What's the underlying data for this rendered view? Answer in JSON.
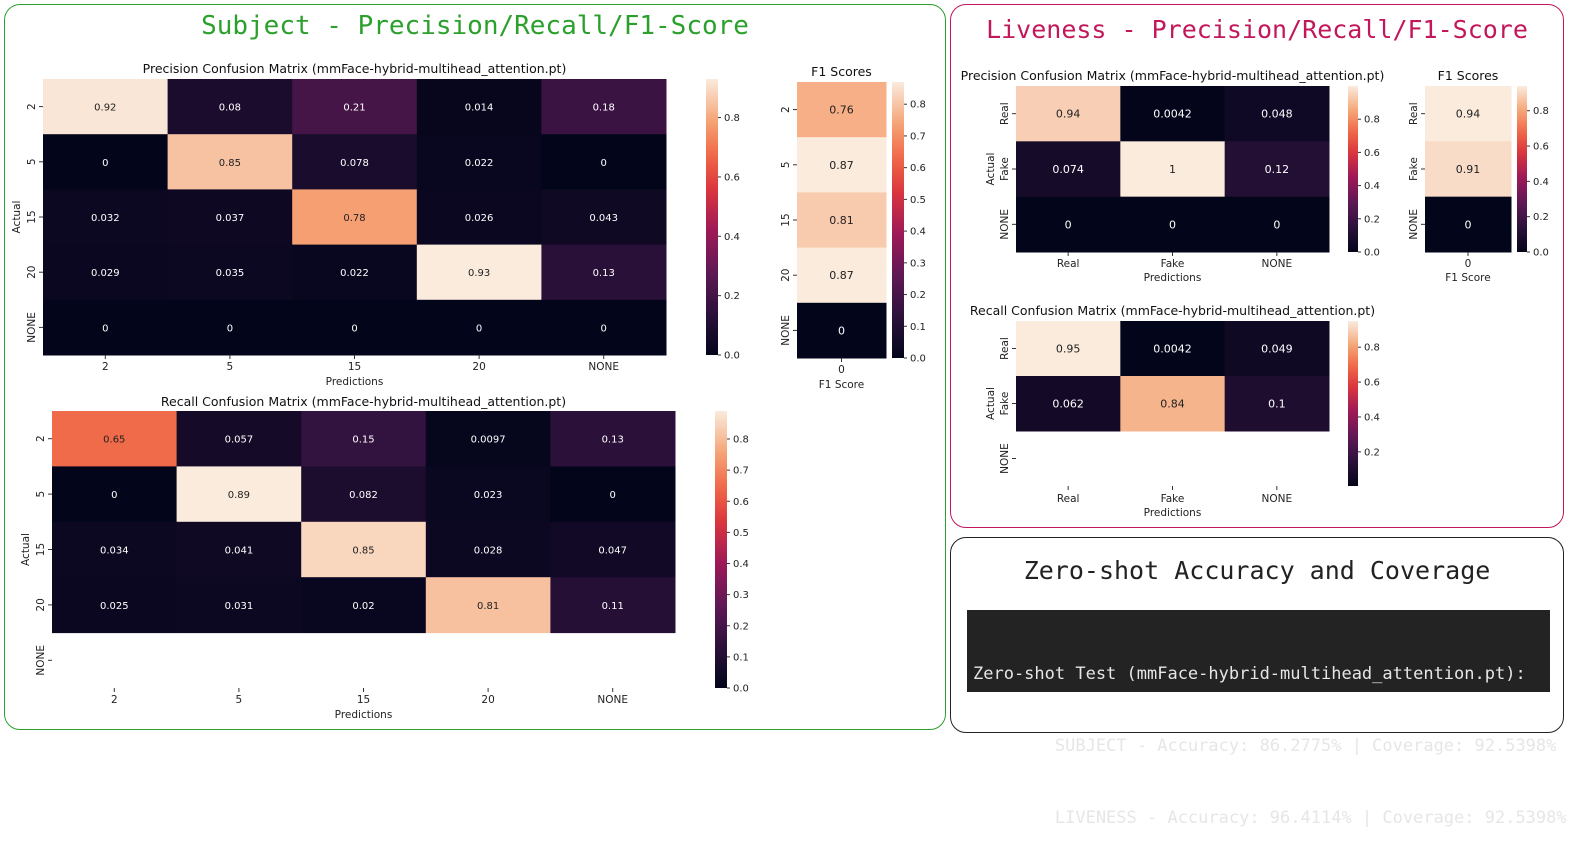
{
  "subject_panel": {
    "title": "Subject - Precision/Recall/F1-Score",
    "accent": "#2ca02c"
  },
  "liveness_panel": {
    "title": "Liveness - Precision/Recall/F1-Score",
    "accent": "#c2185b"
  },
  "zero_shot_panel": {
    "title": "Zero-shot Accuracy and Coverage",
    "lines": [
      "Zero-shot Test (mmFace-hybrid-multihead_attention.pt):",
      "        SUBJECT - Accuracy: 86.2775% | Coverage: 92.5398%",
      "        LIVENESS - Accuracy: 96.4114% | Coverage: 92.5398%"
    ]
  },
  "chart_data": [
    {
      "id": "subj_prec",
      "type": "heatmap",
      "title": "Precision Confusion Matrix (mmFace-hybrid-multihead_attention.pt)",
      "xlabel": "Predictions",
      "ylabel": "Actual",
      "x_categories": [
        "2",
        "5",
        "15",
        "20",
        "NONE"
      ],
      "y_categories": [
        "2",
        "5",
        "15",
        "20",
        "NONE"
      ],
      "values": [
        [
          0.92,
          0.08,
          0.21,
          0.014,
          0.18
        ],
        [
          0,
          0.85,
          0.078,
          0.022,
          0
        ],
        [
          0.032,
          0.037,
          0.78,
          0.026,
          0.043
        ],
        [
          0.029,
          0.035,
          0.022,
          0.93,
          0.13
        ],
        [
          0,
          0,
          0,
          0,
          0
        ]
      ],
      "labels": [
        [
          "0.92",
          "0.08",
          "0.21",
          "0.014",
          "0.18"
        ],
        [
          "0",
          "0.85",
          "0.078",
          "0.022",
          "0"
        ],
        [
          "0.032",
          "0.037",
          "0.78",
          "0.026",
          "0.043"
        ],
        [
          "0.029",
          "0.035",
          "0.022",
          "0.93",
          "0.13"
        ],
        [
          "0",
          "0",
          "0",
          "0",
          "0"
        ]
      ],
      "colorbar": {
        "range": [
          0,
          0.93
        ],
        "ticks": [
          "0.0",
          "0.2",
          "0.4",
          "0.6",
          "0.8"
        ],
        "tick_values": [
          0,
          0.2,
          0.4,
          0.6,
          0.8
        ]
      }
    },
    {
      "id": "subj_f1",
      "type": "heatmap",
      "title": "F1 Scores",
      "xlabel": "F1 Score",
      "ylabel": "",
      "x_categories": [
        "0"
      ],
      "y_categories": [
        "2",
        "5",
        "15",
        "20",
        "NONE"
      ],
      "values": [
        [
          0.76
        ],
        [
          0.87
        ],
        [
          0.81
        ],
        [
          0.87
        ],
        [
          0
        ]
      ],
      "labels": [
        [
          "0.76"
        ],
        [
          "0.87"
        ],
        [
          "0.81"
        ],
        [
          "0.87"
        ],
        [
          "0"
        ]
      ],
      "colorbar": {
        "range": [
          0,
          0.87
        ],
        "ticks": [
          "0.0",
          "0.1",
          "0.2",
          "0.3",
          "0.4",
          "0.5",
          "0.6",
          "0.7",
          "0.8"
        ],
        "tick_values": [
          0,
          0.1,
          0.2,
          0.3,
          0.4,
          0.5,
          0.6,
          0.7,
          0.8
        ]
      }
    },
    {
      "id": "subj_rec",
      "type": "heatmap",
      "title": "Recall Confusion Matrix (mmFace-hybrid-multihead_attention.pt)",
      "xlabel": "Predictions",
      "ylabel": "Actual",
      "x_categories": [
        "2",
        "5",
        "15",
        "20",
        "NONE"
      ],
      "y_categories": [
        "2",
        "5",
        "15",
        "20",
        "NONE"
      ],
      "values": [
        [
          0.65,
          0.057,
          0.15,
          0.0097,
          0.13
        ],
        [
          0,
          0.89,
          0.082,
          0.023,
          0
        ],
        [
          0.034,
          0.041,
          0.85,
          0.028,
          0.047
        ],
        [
          0.025,
          0.031,
          0.02,
          0.81,
          0.11
        ],
        [
          null,
          null,
          null,
          null,
          null
        ]
      ],
      "labels": [
        [
          "0.65",
          "0.057",
          "0.15",
          "0.0097",
          "0.13"
        ],
        [
          "0",
          "0.89",
          "0.082",
          "0.023",
          "0"
        ],
        [
          "0.034",
          "0.041",
          "0.85",
          "0.028",
          "0.047"
        ],
        [
          "0.025",
          "0.031",
          "0.02",
          "0.81",
          "0.11"
        ],
        [
          "",
          "",
          "",
          "",
          ""
        ]
      ],
      "colorbar": {
        "range": [
          0,
          0.89
        ],
        "ticks": [
          "0.0",
          "0.1",
          "0.2",
          "0.3",
          "0.4",
          "0.5",
          "0.6",
          "0.7",
          "0.8"
        ],
        "tick_values": [
          0,
          0.1,
          0.2,
          0.3,
          0.4,
          0.5,
          0.6,
          0.7,
          0.8
        ]
      }
    },
    {
      "id": "live_prec",
      "type": "heatmap",
      "title": "Precision Confusion Matrix (mmFace-hybrid-multihead_attention.pt)",
      "xlabel": "Predictions",
      "ylabel": "Actual",
      "x_categories": [
        "Real",
        "Fake",
        "NONE"
      ],
      "y_categories": [
        "Real",
        "Fake",
        "NONE"
      ],
      "values": [
        [
          0.94,
          0.0042,
          0.048
        ],
        [
          0.074,
          1,
          0.12
        ],
        [
          0,
          0,
          0
        ]
      ],
      "labels": [
        [
          "0.94",
          "0.0042",
          "0.048"
        ],
        [
          "0.074",
          "1",
          "0.12"
        ],
        [
          "0",
          "0",
          "0"
        ]
      ],
      "colorbar": {
        "range": [
          0,
          1
        ],
        "ticks": [
          "0.0",
          "0.2",
          "0.4",
          "0.6",
          "0.8"
        ],
        "tick_values": [
          0,
          0.2,
          0.4,
          0.6,
          0.8
        ]
      }
    },
    {
      "id": "live_f1",
      "type": "heatmap",
      "title": "F1 Scores",
      "xlabel": "F1 Score",
      "ylabel": "",
      "x_categories": [
        "0"
      ],
      "y_categories": [
        "Real",
        "Fake",
        "NONE"
      ],
      "values": [
        [
          0.94
        ],
        [
          0.91
        ],
        [
          0
        ]
      ],
      "labels": [
        [
          "0.94"
        ],
        [
          "0.91"
        ],
        [
          "0"
        ]
      ],
      "colorbar": {
        "range": [
          0,
          0.94
        ],
        "ticks": [
          "0.0",
          "0.2",
          "0.4",
          "0.6",
          "0.8"
        ],
        "tick_values": [
          0,
          0.2,
          0.4,
          0.6,
          0.8
        ]
      }
    },
    {
      "id": "live_rec",
      "type": "heatmap",
      "title": "Recall Confusion Matrix (mmFace-hybrid-multihead_attention.pt)",
      "xlabel": "Predictions",
      "ylabel": "Actual",
      "x_categories": [
        "Real",
        "Fake",
        "NONE"
      ],
      "y_categories": [
        "Real",
        "Fake",
        "NONE"
      ],
      "values": [
        [
          0.95,
          0.0042,
          0.049
        ],
        [
          0.062,
          0.84,
          0.1
        ],
        [
          null,
          null,
          null
        ]
      ],
      "labels": [
        [
          "0.95",
          "0.0042",
          "0.049"
        ],
        [
          "0.062",
          "0.84",
          "0.1"
        ],
        [
          "",
          "",
          ""
        ]
      ],
      "colorbar": {
        "range": [
          0.0042,
          0.95
        ],
        "ticks": [
          "0.2",
          "0.4",
          "0.6",
          "0.8"
        ],
        "tick_values": [
          0.2,
          0.4,
          0.6,
          0.8
        ]
      }
    }
  ]
}
